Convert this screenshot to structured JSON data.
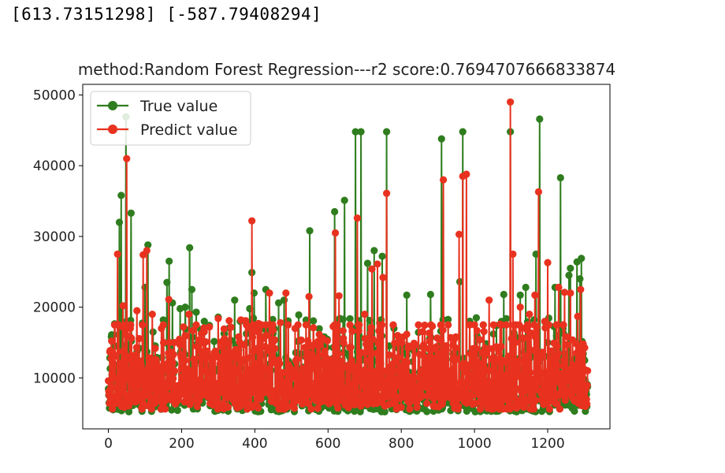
{
  "output": {
    "coef_text": "[613.73151298] [-587.79408294]"
  },
  "colors": {
    "true_series": "#2f7d1e",
    "predict_series": "#e8321f"
  },
  "chart_data": {
    "type": "line",
    "title": "method:Random Forest Regression---r2 score:0.7694707666833874",
    "xlabel": "",
    "ylabel": "",
    "xlim": [
      -70,
      1370
    ],
    "ylim": [
      2800,
      51500
    ],
    "x_ticks": [
      0,
      200,
      400,
      600,
      800,
      1000,
      1200
    ],
    "y_ticks": [
      10000,
      20000,
      30000,
      40000,
      50000
    ],
    "x_tick_labels": [
      "0",
      "200",
      "400",
      "600",
      "800",
      "1000",
      "1200"
    ],
    "y_tick_labels": [
      "10000",
      "20000",
      "30000",
      "40000",
      "50000"
    ],
    "legend": {
      "position": "top-left",
      "entries": [
        "True value",
        "Predict value"
      ]
    },
    "marker": "circle",
    "n_points": 1310,
    "series": [
      {
        "name": "True value",
        "color": "#2f7d1e",
        "notable_points": [
          [
            8,
            15800
          ],
          [
            18,
            14500
          ],
          [
            22,
            11800
          ],
          [
            30,
            32000
          ],
          [
            35,
            35800
          ],
          [
            48,
            46900
          ],
          [
            55,
            14200
          ],
          [
            62,
            33300
          ],
          [
            78,
            13700
          ],
          [
            100,
            22800
          ],
          [
            108,
            28800
          ],
          [
            122,
            16500
          ],
          [
            150,
            18200
          ],
          [
            160,
            23500
          ],
          [
            166,
            26500
          ],
          [
            175,
            20600
          ],
          [
            196,
            19800
          ],
          [
            210,
            20000
          ],
          [
            222,
            28400
          ],
          [
            228,
            22500
          ],
          [
            240,
            19300
          ],
          [
            262,
            18000
          ],
          [
            300,
            18600
          ],
          [
            345,
            21000
          ],
          [
            360,
            18000
          ],
          [
            386,
            19800
          ],
          [
            392,
            24900
          ],
          [
            398,
            22000
          ],
          [
            430,
            22500
          ],
          [
            465,
            20600
          ],
          [
            480,
            21000
          ],
          [
            520,
            18900
          ],
          [
            550,
            30800
          ],
          [
            572,
            14500
          ],
          [
            590,
            15800
          ],
          [
            618,
            33500
          ],
          [
            632,
            18400
          ],
          [
            645,
            35100
          ],
          [
            675,
            44800
          ],
          [
            690,
            44800
          ],
          [
            708,
            26200
          ],
          [
            726,
            28000
          ],
          [
            748,
            27200
          ],
          [
            760,
            44800
          ],
          [
            780,
            17000
          ],
          [
            815,
            21700
          ],
          [
            880,
            21800
          ],
          [
            910,
            43800
          ],
          [
            960,
            23600
          ],
          [
            968,
            44800
          ],
          [
            1005,
            18500
          ],
          [
            1060,
            17400
          ],
          [
            1080,
            21800
          ],
          [
            1098,
            44800
          ],
          [
            1125,
            21700
          ],
          [
            1140,
            22800
          ],
          [
            1168,
            27500
          ],
          [
            1178,
            46600
          ],
          [
            1200,
            15000
          ],
          [
            1220,
            22800
          ],
          [
            1235,
            38300
          ],
          [
            1258,
            24500
          ],
          [
            1262,
            25500
          ],
          [
            1280,
            26400
          ],
          [
            1288,
            24000
          ],
          [
            1292,
            26900
          ],
          [
            1296,
            13000
          ]
        ]
      },
      {
        "name": "Predict value",
        "color": "#e8321f",
        "notable_points": [
          [
            12,
            12000
          ],
          [
            25,
            27500
          ],
          [
            40,
            20200
          ],
          [
            50,
            41000
          ],
          [
            60,
            17000
          ],
          [
            78,
            19500
          ],
          [
            95,
            27400
          ],
          [
            105,
            28000
          ],
          [
            120,
            19000
          ],
          [
            145,
            17000
          ],
          [
            165,
            21100
          ],
          [
            180,
            15000
          ],
          [
            205,
            17200
          ],
          [
            220,
            19000
          ],
          [
            250,
            13800
          ],
          [
            300,
            18400
          ],
          [
            330,
            18100
          ],
          [
            362,
            18200
          ],
          [
            375,
            18100
          ],
          [
            392,
            32200
          ],
          [
            410,
            17700
          ],
          [
            440,
            22000
          ],
          [
            470,
            17800
          ],
          [
            485,
            22000
          ],
          [
            510,
            17000
          ],
          [
            548,
            21500
          ],
          [
            570,
            15000
          ],
          [
            620,
            30500
          ],
          [
            630,
            21600
          ],
          [
            680,
            32600
          ],
          [
            700,
            19000
          ],
          [
            720,
            25400
          ],
          [
            735,
            26100
          ],
          [
            750,
            24200
          ],
          [
            760,
            36100
          ],
          [
            790,
            16000
          ],
          [
            820,
            14500
          ],
          [
            860,
            14300
          ],
          [
            885,
            17300
          ],
          [
            915,
            38000
          ],
          [
            935,
            15700
          ],
          [
            958,
            30300
          ],
          [
            968,
            38500
          ],
          [
            978,
            38800
          ],
          [
            1000,
            17500
          ],
          [
            1040,
            21000
          ],
          [
            1070,
            17600
          ],
          [
            1098,
            49000
          ],
          [
            1105,
            27500
          ],
          [
            1125,
            20000
          ],
          [
            1150,
            19000
          ],
          [
            1165,
            21700
          ],
          [
            1175,
            36300
          ],
          [
            1192,
            18000
          ],
          [
            1200,
            26300
          ],
          [
            1230,
            22800
          ],
          [
            1246,
            22100
          ],
          [
            1262,
            22000
          ],
          [
            1282,
            18700
          ],
          [
            1290,
            22500
          ]
        ]
      }
    ]
  }
}
